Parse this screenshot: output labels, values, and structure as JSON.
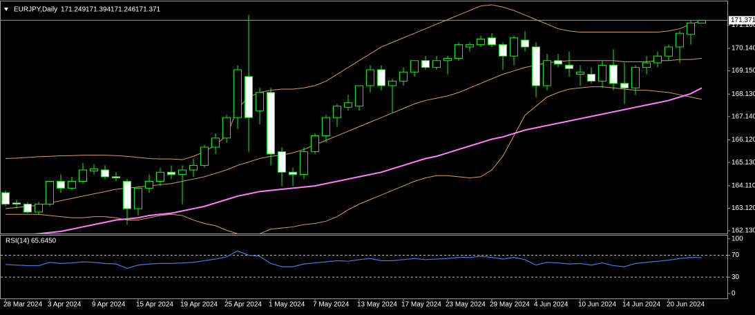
{
  "chart_data": [
    {
      "type": "candlestick",
      "title": "EURJPY,Daily",
      "categories": [
        "28 Mar 2024",
        null,
        null,
        null,
        "3 Apr 2024",
        null,
        null,
        null,
        "9 Apr 2024",
        null,
        null,
        null,
        "15 Apr 2024",
        null,
        null,
        null,
        "19 Apr 2024",
        null,
        null,
        null,
        "25 Apr 2024",
        null,
        null,
        null,
        "1 May 2024",
        null,
        null,
        null,
        "7 May 2024",
        null,
        null,
        null,
        "13 May 2024",
        null,
        null,
        null,
        "17 May 2024",
        null,
        null,
        null,
        "23 May 2024",
        null,
        null,
        null,
        "29 May 2024",
        null,
        null,
        null,
        "4 Jun 2024",
        null,
        null,
        null,
        "10 Jun 2024",
        null,
        null,
        null,
        "14 Jun 2024",
        null,
        null,
        null,
        "20 Jun 2024",
        null,
        null,
        null
      ],
      "open": [
        163.8,
        163.35,
        163.3,
        162.95,
        163.3,
        164.3,
        164.0,
        164.3,
        164.75,
        164.8,
        164.5,
        164.3,
        163.1,
        164.0,
        164.3,
        164.7,
        164.6,
        164.8,
        165.0,
        165.8,
        166.2,
        167.1,
        168.9,
        167.4,
        168.2,
        165.6,
        164.7,
        164.6,
        165.6,
        166.3,
        167.1,
        167.55,
        167.6,
        168.5,
        169.2,
        168.5,
        168.7,
        169.1,
        169.6,
        169.3,
        169.6,
        169.7,
        170.2,
        170.3,
        170.6,
        170.3,
        169.8,
        170.5,
        170.2,
        168.5,
        169.6,
        169.4,
        169.0,
        169.0,
        168.7,
        169.4,
        168.6,
        168.4,
        169.3,
        169.5,
        169.8,
        170.2,
        170.75,
        171.249
      ],
      "high": [
        163.9,
        163.5,
        163.4,
        163.4,
        164.3,
        164.6,
        164.5,
        165.1,
        165.05,
        165.0,
        164.7,
        164.4,
        164.0,
        164.6,
        164.9,
        165.0,
        165.0,
        165.3,
        165.9,
        166.4,
        167.2,
        169.4,
        171.6,
        168.4,
        168.4,
        165.8,
        164.9,
        165.8,
        166.4,
        167.2,
        167.7,
        168.1,
        168.5,
        169.4,
        169.4,
        168.8,
        169.3,
        169.6,
        169.8,
        169.8,
        169.8,
        170.4,
        170.4,
        170.7,
        170.8,
        170.4,
        170.7,
        170.9,
        170.4,
        169.9,
        169.9,
        170.0,
        169.4,
        169.3,
        169.6,
        170.1,
        169.5,
        169.4,
        169.8,
        170.0,
        170.3,
        170.9,
        171.35,
        171.394
      ],
      "low": [
        163.2,
        163.1,
        162.9,
        162.85,
        163.2,
        163.8,
        163.9,
        164.2,
        164.6,
        164.4,
        164.3,
        162.4,
        162.8,
        163.8,
        164.1,
        164.4,
        163.3,
        164.5,
        164.9,
        165.5,
        166.0,
        166.6,
        165.6,
        166.8,
        165.0,
        164.1,
        164.1,
        164.4,
        165.5,
        166.0,
        166.7,
        167.4,
        167.4,
        168.2,
        168.3,
        167.3,
        168.5,
        168.9,
        169.2,
        169.2,
        169.0,
        169.6,
        170.0,
        170.2,
        170.2,
        169.2,
        169.4,
        170.0,
        168.0,
        168.3,
        169.3,
        168.9,
        168.5,
        168.6,
        168.4,
        168.3,
        167.7,
        168.1,
        169.0,
        169.3,
        169.6,
        169.5,
        170.3,
        171.246
      ],
      "close": [
        163.3,
        163.3,
        162.95,
        163.3,
        164.3,
        164.0,
        164.3,
        164.8,
        164.85,
        164.5,
        164.45,
        163.1,
        164.0,
        164.3,
        164.7,
        164.6,
        164.8,
        165.0,
        165.8,
        166.2,
        167.1,
        169.2,
        167.1,
        168.2,
        165.5,
        164.7,
        164.6,
        165.6,
        166.3,
        167.1,
        167.6,
        167.75,
        168.5,
        169.2,
        168.5,
        168.7,
        169.1,
        169.6,
        169.3,
        169.6,
        169.7,
        170.3,
        170.3,
        170.55,
        170.3,
        169.8,
        170.6,
        170.2,
        168.5,
        169.6,
        169.45,
        169.25,
        169.1,
        168.7,
        169.4,
        168.6,
        168.4,
        169.3,
        169.5,
        169.8,
        170.2,
        170.8,
        171.25,
        171.371
      ],
      "up_color": "#000000",
      "down_color": "#ffffff",
      "edge_color": "#00ff00",
      "overlays": [
        {
          "color": "#d9a050",
          "width": 1,
          "values": [
            165.3,
            165.32,
            165.35,
            165.38,
            165.4,
            165.42,
            165.43,
            165.45,
            165.45,
            165.45,
            165.43,
            165.4,
            165.35,
            165.3,
            165.28,
            165.28,
            165.25,
            165.4,
            165.6,
            165.9,
            166.3,
            167.5,
            168.0,
            168.2,
            168.3,
            168.35,
            168.35,
            168.4,
            168.5,
            168.7,
            169.0,
            169.3,
            169.6,
            169.9,
            170.2,
            170.4,
            170.6,
            170.8,
            171.0,
            171.2,
            171.4,
            171.6,
            171.8,
            172.0,
            172.05,
            171.95,
            171.8,
            171.6,
            171.4,
            171.2,
            171.0,
            170.9,
            170.85,
            170.85,
            170.85,
            170.85,
            170.85,
            170.85,
            170.85,
            170.85,
            170.9,
            171.0,
            171.2,
            171.35
          ]
        },
        {
          "color": "#d9a050",
          "width": 1,
          "values": [
            163.1,
            163.15,
            163.2,
            163.25,
            163.35,
            163.45,
            163.55,
            163.65,
            163.75,
            163.85,
            163.95,
            164.0,
            164.05,
            164.1,
            164.15,
            164.2,
            164.3,
            164.4,
            164.5,
            164.65,
            164.8,
            165.0,
            165.15,
            165.3,
            165.4,
            165.45,
            165.55,
            165.7,
            165.9,
            166.1,
            166.3,
            166.5,
            166.7,
            166.9,
            167.1,
            167.3,
            167.5,
            167.7,
            167.85,
            167.95,
            168.05,
            168.2,
            168.4,
            168.6,
            168.8,
            169.0,
            169.15,
            169.3,
            169.4,
            169.5,
            169.55,
            169.6,
            169.6,
            169.6,
            169.6,
            169.6,
            169.55,
            169.55,
            169.55,
            169.6,
            169.6,
            169.65,
            169.65,
            169.7
          ]
        },
        {
          "color": "#d9a050",
          "width": 1,
          "values": [
            162.85,
            162.85,
            162.85,
            162.85,
            162.8,
            162.75,
            162.7,
            162.7,
            162.75,
            162.75,
            162.7,
            162.6,
            162.6,
            162.7,
            162.8,
            162.85,
            162.8,
            162.6,
            162.45,
            162.35,
            162.15,
            162.0,
            161.9,
            162.0,
            162.2,
            162.25,
            162.3,
            162.4,
            162.45,
            162.55,
            162.75,
            163.05,
            163.3,
            163.5,
            163.7,
            163.9,
            164.1,
            164.3,
            164.45,
            164.55,
            164.55,
            164.5,
            164.45,
            164.5,
            164.8,
            165.4,
            166.3,
            167.2,
            167.6,
            168.0,
            168.2,
            168.35,
            168.4,
            168.45,
            168.45,
            168.4,
            168.35,
            168.3,
            168.3,
            168.25,
            168.2,
            168.1,
            168.0,
            167.9
          ]
        },
        {
          "color": "#ff80ff",
          "width": 2,
          "values": [
            161.9,
            161.93,
            161.96,
            162.0,
            162.05,
            162.1,
            162.2,
            162.3,
            162.4,
            162.5,
            162.6,
            162.65,
            162.7,
            162.8,
            162.85,
            162.9,
            163.0,
            163.1,
            163.2,
            163.35,
            163.5,
            163.65,
            163.75,
            163.85,
            163.9,
            163.95,
            164.0,
            164.05,
            164.1,
            164.2,
            164.3,
            164.4,
            164.5,
            164.6,
            164.7,
            164.85,
            165.0,
            165.15,
            165.3,
            165.4,
            165.55,
            165.7,
            165.85,
            166.0,
            166.15,
            166.25,
            166.4,
            166.55,
            166.65,
            166.75,
            166.85,
            166.95,
            167.05,
            167.15,
            167.25,
            167.35,
            167.45,
            167.55,
            167.65,
            167.75,
            167.85,
            168.0,
            168.15,
            168.4
          ]
        }
      ],
      "ylim": [
        162.01,
        172.2
      ],
      "yticks": [
        {
          "value": 162.13,
          "label": "162.130"
        },
        {
          "value": 163.12,
          "label": "163.120"
        },
        {
          "value": 164.11,
          "label": "164.110"
        },
        {
          "value": 165.13,
          "label": "165.130"
        },
        {
          "value": 166.12,
          "label": "166.120"
        },
        {
          "value": 167.14,
          "label": "167.140"
        },
        {
          "value": 168.13,
          "label": "168.130"
        },
        {
          "value": 169.15,
          "label": "169.150"
        },
        {
          "value": 170.14,
          "label": "170.140"
        },
        {
          "value": 171.16,
          "label": "171.160"
        }
      ]
    },
    {
      "type": "line",
      "title": "RSI(14)",
      "last_label": "65.6450",
      "color": "#3c7ee0",
      "values": [
        53,
        52,
        51,
        51,
        57,
        55,
        56,
        58,
        57,
        55,
        54,
        46,
        52,
        54,
        55,
        55,
        56,
        57,
        60,
        63,
        67,
        78,
        70,
        68,
        55,
        49,
        49,
        54,
        56,
        58,
        60,
        59,
        62,
        64,
        60,
        60,
        62,
        64,
        62,
        63,
        64,
        66,
        66,
        68,
        66,
        63,
        66,
        62,
        52,
        57,
        56,
        54,
        55,
        52,
        56,
        51,
        49,
        55,
        57,
        59,
        61,
        64,
        66,
        65.645
      ],
      "ylim": [
        -9,
        106
      ],
      "yticks": [
        0,
        30,
        70,
        100
      ],
      "levels": [
        30,
        70
      ]
    }
  ]
}
